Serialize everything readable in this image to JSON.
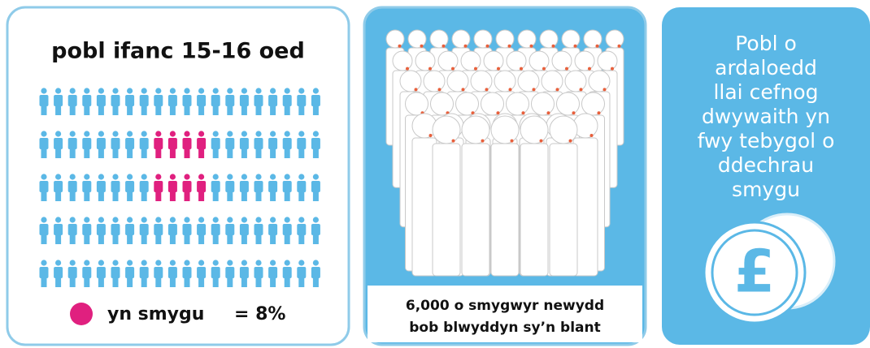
{
  "panels": [
    {
      "title": "pobl ifanc 15-16 oed",
      "legend": "yn smygu",
      "legend_value": "= 8%"
    },
    {
      "caption": [
        "6,000 o smygwyr newydd",
        "bob blwyddyn sy’n blant"
      ]
    },
    {
      "text": [
        "Pobl o",
        "ardaloedd",
        "llai cefnog",
        "dwywaith yn",
        "fwy tebygol o",
        "ddechrau",
        "smygu"
      ],
      "symbol": "£"
    }
  ]
}
